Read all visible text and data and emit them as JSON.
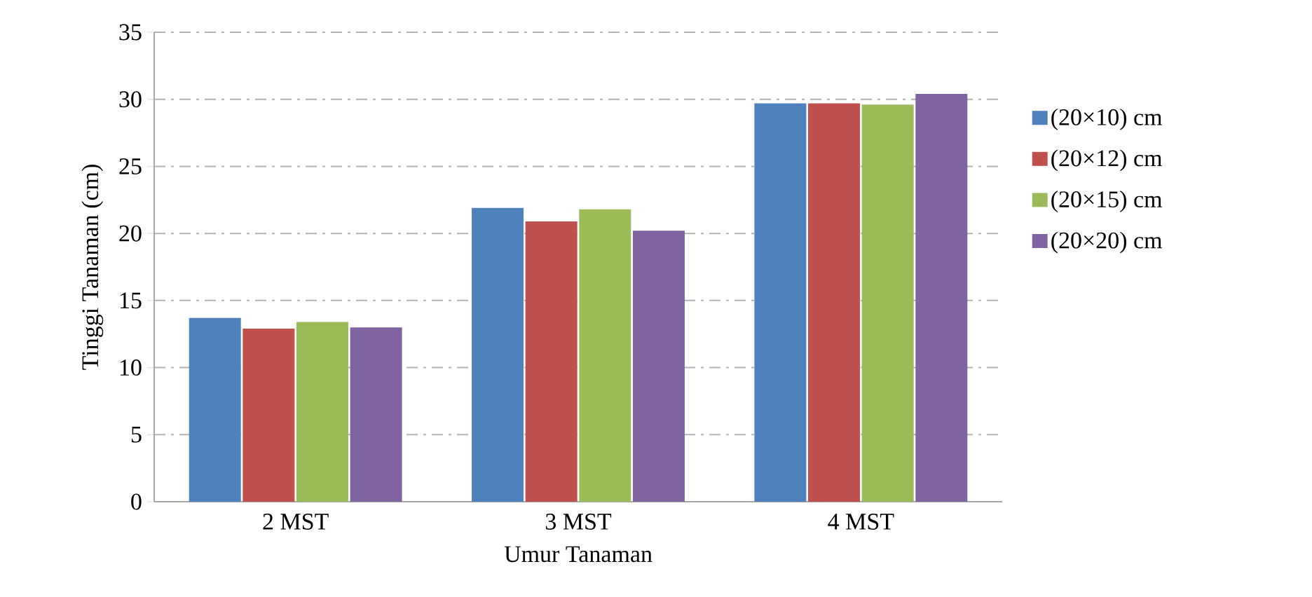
{
  "chart_data": {
    "type": "bar",
    "xlabel": "Umur Tanaman",
    "ylabel": "Tinggi Tanaman (cm)",
    "categories": [
      "2 MST",
      "3 MST",
      "4 MST"
    ],
    "series": [
      {
        "name": "(20×10) cm",
        "color": "#4f81bd",
        "values": [
          13.7,
          21.9,
          29.7
        ]
      },
      {
        "name": "(20×12) cm",
        "color": "#c0504d",
        "values": [
          12.9,
          20.9,
          29.7
        ]
      },
      {
        "name": "(20×15) cm",
        "color": "#9bbb59",
        "values": [
          13.4,
          21.8,
          29.6
        ]
      },
      {
        "name": "(20×20) cm",
        "color": "#8064a2",
        "values": [
          13.0,
          20.2,
          30.4
        ]
      }
    ],
    "ylim": [
      0,
      35
    ],
    "yticks": [
      0,
      5,
      10,
      15,
      20,
      25,
      30,
      35
    ],
    "grid": "y",
    "legend": "right"
  }
}
